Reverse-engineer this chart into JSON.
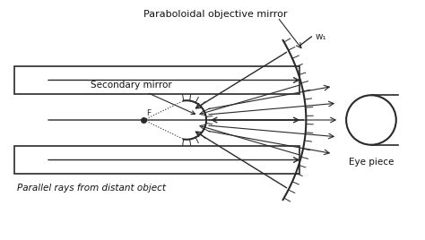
{
  "bg_color": "#ffffff",
  "line_color": "#2a2a2a",
  "title": "Paraboloidal objective mirror",
  "label_secondary": "Secondary mirror",
  "label_eyepiece": "Eye piece",
  "label_parallel": "Parallel rays from distant object",
  "label_w1": "w₁",
  "label_F": "F",
  "fig_w": 4.74,
  "fig_h": 2.68,
  "dpi": 100
}
